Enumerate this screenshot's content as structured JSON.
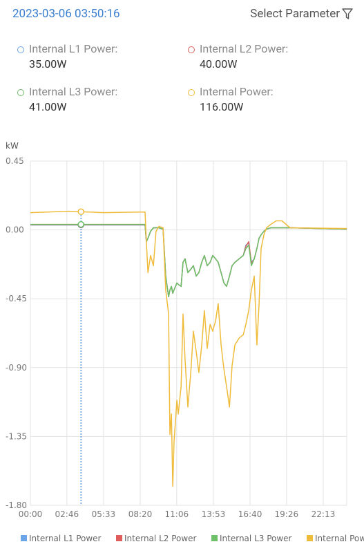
{
  "header": {
    "timestamp": "2023-03-06 03:50:16",
    "filter_label": "Select Parameter"
  },
  "readout": [
    {
      "name": "Internal L1 Power:",
      "value": "35.00W",
      "color": "#6aa5e8"
    },
    {
      "name": "Internal L2 Power:",
      "value": "40.00W",
      "color": "#e05d5d"
    },
    {
      "name": "Internal L3 Power:",
      "value": "41.00W",
      "color": "#6cc067"
    },
    {
      "name": "Internal Power:",
      "value": "116.00W",
      "color": "#efbb3a"
    }
  ],
  "chart_data": {
    "type": "line",
    "y_label": "kW",
    "grid": true,
    "legend": "bottom",
    "x": [
      0,
      176,
      333,
      500,
      522,
      528,
      535,
      547,
      560,
      572,
      585,
      604,
      616,
      629,
      635,
      642,
      648,
      654,
      667,
      673,
      686,
      695,
      704,
      717,
      730,
      742,
      755,
      767,
      780,
      792,
      805,
      818,
      830,
      843,
      855,
      868,
      881,
      893,
      906,
      918,
      931,
      950,
      969,
      981,
      994,
      1006,
      1019,
      1031,
      1041,
      1050,
      1063,
      1075,
      1094,
      1119,
      1145,
      1182,
      1440
    ],
    "xlim": [
      0,
      1440
    ],
    "xticks": [
      {
        "value": 0,
        "label": "00:00"
      },
      {
        "value": 166,
        "label": "02:46"
      },
      {
        "value": 333,
        "label": "05:33"
      },
      {
        "value": 500,
        "label": "08:20"
      },
      {
        "value": 666,
        "label": "11:06"
      },
      {
        "value": 833,
        "label": "13:53"
      },
      {
        "value": 1000,
        "label": "16:40"
      },
      {
        "value": 1166,
        "label": "19:26"
      },
      {
        "value": 1333,
        "label": "22:13"
      }
    ],
    "ylim": [
      -1.8,
      0.45
    ],
    "yticks": [
      0.45,
      {
        "value": 0,
        "label": "0.00"
      },
      -0.45,
      {
        "value": -0.9,
        "label": "-0.90"
      },
      -1.35,
      {
        "value": -1.8,
        "label": "-1.80"
      }
    ],
    "series": [
      {
        "name": "Internal L1 Power",
        "color": "#6aa5e8",
        "values": [
          0.032,
          0.032,
          0.032,
          0.032,
          0.032,
          -0.077,
          -0.054,
          -0.009,
          0.014,
          0.014,
          0.014,
          0.005,
          -0.302,
          -0.437,
          -0.392,
          -0.369,
          -0.414,
          -0.392,
          -0.347,
          -0.356,
          -0.369,
          -0.212,
          -0.189,
          -0.279,
          -0.257,
          -0.234,
          -0.302,
          -0.279,
          -0.212,
          -0.167,
          -0.234,
          -0.212,
          -0.167,
          -0.189,
          -0.212,
          -0.279,
          -0.347,
          -0.369,
          -0.302,
          -0.234,
          -0.212,
          -0.189,
          -0.167,
          -0.099,
          -0.086,
          -0.212,
          -0.189,
          -0.122,
          -0.054,
          -0.032,
          -0.009,
          0.005,
          0.014,
          0.014,
          0.014,
          0.014,
          0.005
        ]
      },
      {
        "name": "Internal L2 Power",
        "color": "#e05d5d",
        "values": [
          0.034,
          0.034,
          0.034,
          0.034,
          0.034,
          -0.077,
          -0.054,
          -0.009,
          0.014,
          0.014,
          0.014,
          0.005,
          -0.302,
          -0.437,
          -0.392,
          -0.369,
          -0.414,
          -0.392,
          -0.347,
          -0.356,
          -0.369,
          -0.212,
          -0.189,
          -0.279,
          -0.257,
          -0.234,
          -0.302,
          -0.279,
          -0.212,
          -0.167,
          -0.234,
          -0.212,
          -0.167,
          -0.189,
          -0.212,
          -0.279,
          -0.347,
          -0.369,
          -0.302,
          -0.234,
          -0.212,
          -0.189,
          -0.167,
          -0.108,
          -0.077,
          -0.22,
          -0.189,
          -0.122,
          -0.054,
          -0.032,
          -0.009,
          0.005,
          0.014,
          0.014,
          0.014,
          0.014,
          0.005
        ]
      },
      {
        "name": "Internal L3 Power",
        "color": "#6cc067",
        "values": [
          0.036,
          0.036,
          0.036,
          0.036,
          0.036,
          -0.077,
          -0.054,
          -0.009,
          0.014,
          0.014,
          0.014,
          0.005,
          -0.302,
          -0.437,
          -0.392,
          -0.369,
          -0.414,
          -0.392,
          -0.347,
          -0.356,
          -0.369,
          -0.212,
          -0.189,
          -0.279,
          -0.257,
          -0.234,
          -0.302,
          -0.279,
          -0.212,
          -0.167,
          -0.234,
          -0.212,
          -0.167,
          -0.189,
          -0.212,
          -0.279,
          -0.347,
          -0.369,
          -0.302,
          -0.234,
          -0.212,
          -0.189,
          -0.167,
          -0.122,
          -0.099,
          -0.234,
          -0.189,
          -0.122,
          -0.054,
          -0.032,
          -0.009,
          0.005,
          0.014,
          0.014,
          0.014,
          0.014,
          0.005
        ]
      },
      {
        "name": "Internal Power",
        "color": "#efbb3a",
        "values": [
          0.113,
          0.122,
          0.113,
          0.117,
          0.117,
          -0.077,
          -0.279,
          -0.167,
          -0.234,
          -0.009,
          0.023,
          0.014,
          -0.392,
          -0.55,
          -1.338,
          -1.203,
          -1.676,
          -1.383,
          -1.113,
          -1.203,
          -1.023,
          -0.55,
          -0.842,
          -1.158,
          -0.932,
          -0.662,
          -0.797,
          -0.932,
          -0.752,
          -0.527,
          -0.775,
          -0.617,
          -0.662,
          -0.595,
          -0.482,
          -0.752,
          -0.91,
          -1.023,
          -1.158,
          -0.887,
          -0.752,
          -0.707,
          -0.685,
          -0.617,
          -0.527,
          -0.392,
          -0.302,
          -0.752,
          -0.482,
          -0.122,
          -0.032,
          0.014,
          0.036,
          0.059,
          0.059,
          0.014,
          0.009
        ]
      }
    ]
  }
}
